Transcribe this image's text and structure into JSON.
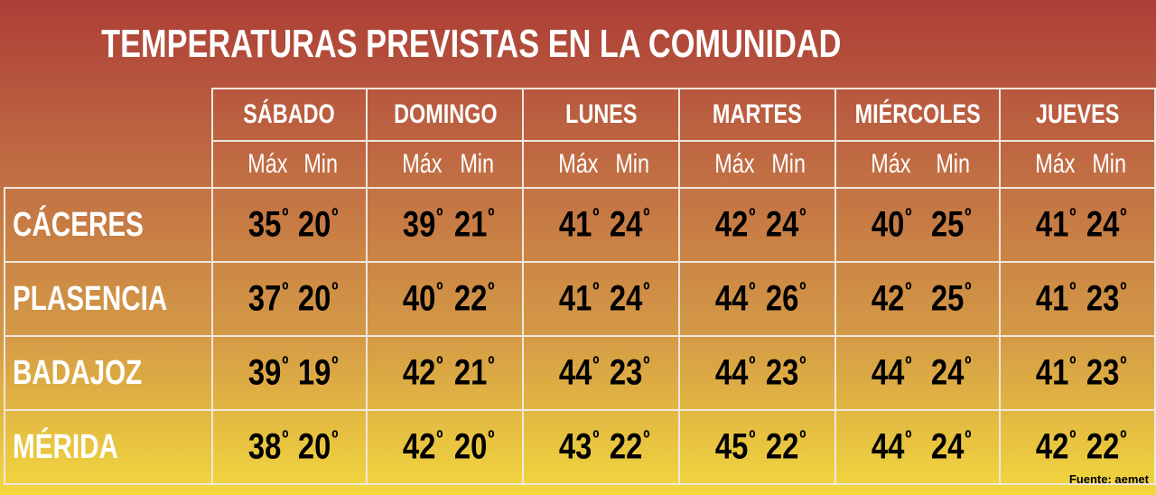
{
  "title": "TEMPERATURAS PREVISTAS EN LA COMUNIDAD",
  "source": "Fuente: aemet",
  "max_label": "Máx",
  "min_label": "Min",
  "degree_symbol": "º",
  "colors": {
    "background_top": "#ad3e36",
    "background_bottom": "#f2d83e",
    "header_text": "#ffffff",
    "value_text": "#000000",
    "grid_lines": "#f1e6df"
  },
  "chart_data": {
    "type": "table",
    "title": "TEMPERATURAS PREVISTAS EN LA COMUNIDAD",
    "days": [
      "SÁBADO",
      "DOMINGO",
      "LUNES",
      "MARTES",
      "MIÉRCOLES",
      "JUEVES"
    ],
    "rows": [
      {
        "city": "CÁCERES",
        "max": [
          35,
          39,
          41,
          42,
          40,
          41
        ],
        "min": [
          20,
          21,
          24,
          24,
          25,
          24
        ]
      },
      {
        "city": "PLASENCIA",
        "max": [
          37,
          40,
          41,
          44,
          42,
          41
        ],
        "min": [
          20,
          22,
          24,
          26,
          25,
          23
        ]
      },
      {
        "city": "BADAJOZ",
        "max": [
          39,
          42,
          44,
          44,
          44,
          41
        ],
        "min": [
          19,
          21,
          23,
          23,
          24,
          23
        ]
      },
      {
        "city": "MÉRIDA",
        "max": [
          38,
          42,
          43,
          45,
          44,
          42
        ],
        "min": [
          20,
          20,
          22,
          22,
          24,
          22
        ]
      }
    ]
  }
}
